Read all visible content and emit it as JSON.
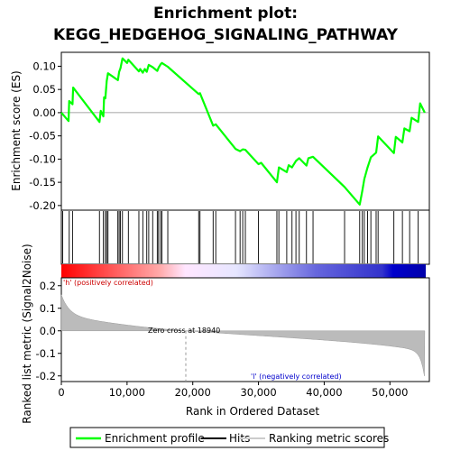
{
  "chart_data": {
    "type": "line",
    "title_line1": "Enrichment plot:",
    "title_line2": "KEGG_HEDGEHOG_SIGNALING_PATHWAY",
    "es_ylabel": "Enrichment score (ES)",
    "es_yticks": [
      0.1,
      0.05,
      0.0,
      -0.05,
      -0.1,
      -0.15,
      -0.2
    ],
    "es_ylim": [
      -0.21,
      0.13
    ],
    "es_ytick_labels": [
      "0.10",
      "0.05",
      "0.00",
      "-0.05",
      "-0.10",
      "-0.15",
      "-0.20"
    ],
    "xlim": [
      0,
      56000
    ],
    "xlabel": "Rank in Ordered Dataset",
    "xticks": [
      0,
      10000,
      20000,
      30000,
      40000,
      50000
    ],
    "xtick_labels": [
      "0",
      "10,000",
      "20,000",
      "30,000",
      "40,000",
      "50,000"
    ],
    "rank_ylabel": "Ranked list metric (Signal2Noise)",
    "rank_yticks": [
      0.2,
      0.1,
      0.0,
      -0.1,
      -0.2
    ],
    "rank_ytick_labels": [
      "0.2",
      "0.1",
      "0.0",
      "-0.1",
      "-0.2"
    ],
    "rank_ylim": [
      -0.225,
      0.235
    ],
    "positive_label": "'h' (positively correlated)",
    "negative_label": "'l' (negatively correlated)",
    "zero_cross_label": "Zero cross at 18940",
    "zero_cross": 18940,
    "n_genes": 55300,
    "hits": [
      200,
      1200,
      1700,
      5800,
      6400,
      6700,
      6900,
      7100,
      8600,
      8800,
      9000,
      9300,
      10200,
      11800,
      12400,
      13000,
      13300,
      13900,
      14600,
      14800,
      15100,
      15300,
      16200,
      20900,
      21100,
      23100,
      23500,
      26500,
      27200,
      27600,
      28000,
      30000,
      32800,
      33100,
      34300,
      35100,
      35700,
      36200,
      37300,
      38300,
      43100,
      45400,
      45800,
      46100,
      46600,
      47100,
      47900,
      48200,
      50600,
      51900,
      53000,
      54300
    ],
    "es_points": [
      [
        0,
        0.0
      ],
      [
        1100,
        -0.018
      ],
      [
        1200,
        0.025
      ],
      [
        1700,
        0.018
      ],
      [
        1800,
        0.054
      ],
      [
        5800,
        -0.02
      ],
      [
        6000,
        0.004
      ],
      [
        6400,
        -0.008
      ],
      [
        6500,
        0.033
      ],
      [
        6700,
        0.031
      ],
      [
        6900,
        0.068
      ],
      [
        7100,
        0.085
      ],
      [
        8600,
        0.07
      ],
      [
        8800,
        0.088
      ],
      [
        9000,
        0.096
      ],
      [
        9300,
        0.117
      ],
      [
        10000,
        0.107
      ],
      [
        10200,
        0.114
      ],
      [
        11800,
        0.089
      ],
      [
        12000,
        0.094
      ],
      [
        12400,
        0.086
      ],
      [
        12700,
        0.094
      ],
      [
        13000,
        0.088
      ],
      [
        13300,
        0.103
      ],
      [
        13900,
        0.098
      ],
      [
        14600,
        0.09
      ],
      [
        14800,
        0.097
      ],
      [
        15100,
        0.104
      ],
      [
        15300,
        0.107
      ],
      [
        16200,
        0.099
      ],
      [
        20900,
        0.04
      ],
      [
        21100,
        0.042
      ],
      [
        23100,
        -0.028
      ],
      [
        23500,
        -0.025
      ],
      [
        26500,
        -0.078
      ],
      [
        27200,
        -0.083
      ],
      [
        27600,
        -0.079
      ],
      [
        28000,
        -0.08
      ],
      [
        30000,
        -0.111
      ],
      [
        30400,
        -0.108
      ],
      [
        32800,
        -0.15
      ],
      [
        33100,
        -0.118
      ],
      [
        34300,
        -0.128
      ],
      [
        34600,
        -0.113
      ],
      [
        35100,
        -0.118
      ],
      [
        35700,
        -0.104
      ],
      [
        36200,
        -0.098
      ],
      [
        37300,
        -0.114
      ],
      [
        37600,
        -0.098
      ],
      [
        38300,
        -0.095
      ],
      [
        43100,
        -0.16
      ],
      [
        45400,
        -0.198
      ],
      [
        45800,
        -0.168
      ],
      [
        46100,
        -0.143
      ],
      [
        46600,
        -0.118
      ],
      [
        47100,
        -0.096
      ],
      [
        47900,
        -0.086
      ],
      [
        48200,
        -0.051
      ],
      [
        50600,
        -0.087
      ],
      [
        50900,
        -0.052
      ],
      [
        51900,
        -0.064
      ],
      [
        52200,
        -0.034
      ],
      [
        53000,
        -0.04
      ],
      [
        53300,
        -0.011
      ],
      [
        54300,
        -0.02
      ],
      [
        54600,
        0.02
      ],
      [
        55300,
        0.0
      ]
    ]
  },
  "legend": {
    "enrichment_label": "Enrichment profile",
    "hits_label": "Hits",
    "metric_label": "Ranking metric scores",
    "enrichment_color": "#00ff00",
    "hits_color": "#000000",
    "metric_color": "#cccccc"
  }
}
